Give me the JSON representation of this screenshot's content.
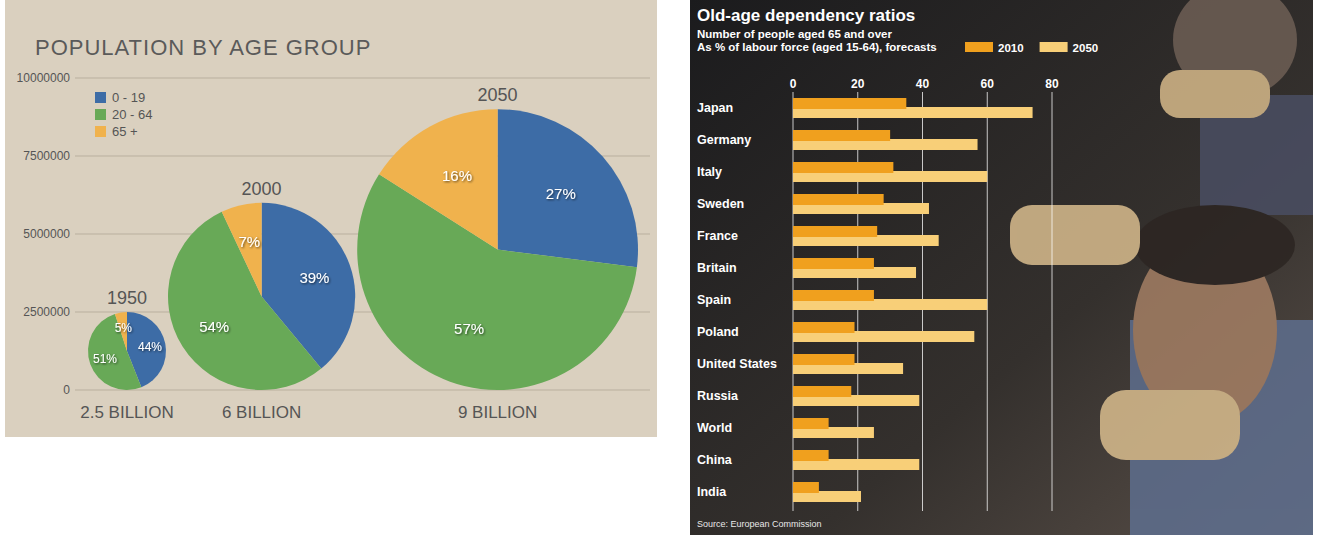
{
  "chart_data": [
    {
      "type": "pie",
      "title": "POPULATION BY AGE GROUP",
      "categories": [
        "0 - 19",
        "20 - 64",
        "65 +"
      ],
      "colors": [
        "#3d6ca6",
        "#68a957",
        "#f0b24d"
      ],
      "ylim": [
        0,
        10000000
      ],
      "yticks": [
        0,
        2500000,
        5000000,
        7500000,
        10000000
      ],
      "grid": true,
      "legend": "upper left",
      "data_labels": true,
      "series": [
        {
          "name": "1950",
          "values": [
            44,
            51,
            5
          ],
          "value_labels": [
            "44%",
            "51%",
            "5%"
          ],
          "size": 2500000,
          "size_label": "2.5 BILLION"
        },
        {
          "name": "2000",
          "values": [
            39,
            54,
            7
          ],
          "value_labels": [
            "39%",
            "54%",
            "7%"
          ],
          "size": 6000000,
          "size_label": "6 BILLION"
        },
        {
          "name": "2050",
          "values": [
            27,
            57,
            16
          ],
          "value_labels": [
            "27%",
            "57%",
            "16%"
          ],
          "size": 9000000,
          "size_label": "9 BILLION"
        }
      ]
    },
    {
      "type": "bar",
      "orientation": "horizontal",
      "title": "Old-age dependency ratios",
      "subtitle": [
        "Number of people aged 65 and over",
        "As % of labour force (aged 15-64), forecasts"
      ],
      "annotations": [
        "Source: European Commission"
      ],
      "categories": [
        "Japan",
        "Germany",
        "Italy",
        "Sweden",
        "France",
        "Britain",
        "Spain",
        "Poland",
        "United States",
        "Russia",
        "World",
        "China",
        "India"
      ],
      "xlim": [
        0,
        80
      ],
      "xticks": [
        0,
        20,
        40,
        60,
        80
      ],
      "grid": true,
      "legend": "upper right",
      "series": [
        {
          "name": "2010",
          "color": "#f0a01e",
          "values": [
            35,
            30,
            31,
            28,
            26,
            25,
            25,
            19,
            19,
            18,
            11,
            11,
            8
          ]
        },
        {
          "name": "2050",
          "color": "#f8cf78",
          "values": [
            74,
            57,
            60,
            42,
            45,
            38,
            60,
            56,
            34,
            39,
            25,
            39,
            21
          ]
        }
      ]
    }
  ]
}
